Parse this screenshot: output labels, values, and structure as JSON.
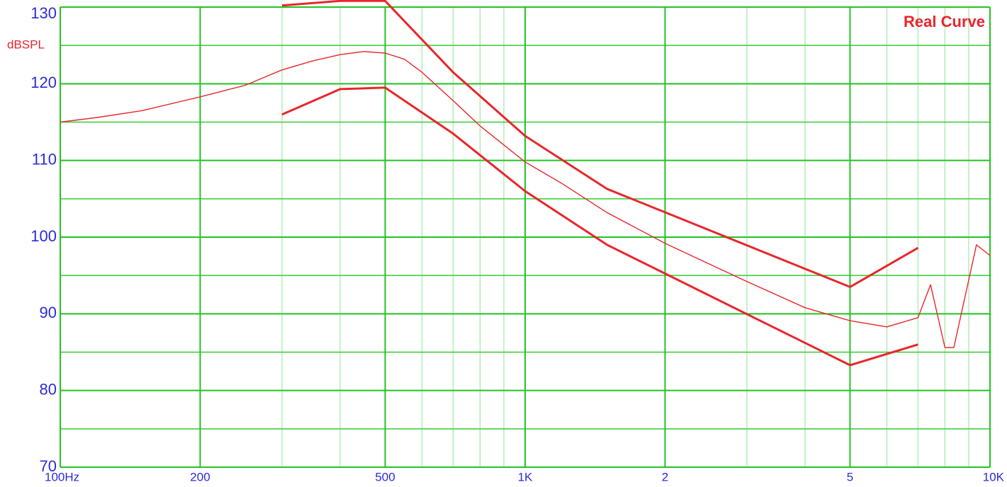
{
  "chart_data": {
    "type": "line",
    "title": "Real Curve",
    "y_label": "dBSPL",
    "xscale": "log",
    "xlim": [
      100,
      10000
    ],
    "ylim": [
      70,
      130
    ],
    "xticks": [
      {
        "value": 100,
        "label": "100Hz"
      },
      200,
      500,
      {
        "value": 1000,
        "label": "1K"
      },
      {
        "value": 2000,
        "label": "2"
      },
      {
        "value": 5000,
        "label": "5"
      },
      {
        "value": 10000,
        "label": "10K"
      }
    ],
    "minor_xticks": [
      300,
      400,
      600,
      700,
      800,
      900,
      3000,
      4000,
      6000,
      7000,
      8000,
      9000
    ],
    "yticks": [
      70,
      80,
      90,
      100,
      110,
      120,
      130
    ],
    "minor_yticks": [
      75,
      85,
      95,
      105,
      115,
      125
    ],
    "grid": true,
    "series": [
      {
        "color": "#e8262b",
        "x": [
          300,
          400,
          500,
          700,
          1000,
          1500,
          5000,
          7000
        ],
        "values": [
          130.2,
          130.8,
          130.8,
          121.5,
          113.2,
          106.3,
          93.5,
          98.6
        ]
      },
      {
        "color": "#e8262b",
        "x": [
          100,
          120,
          150,
          200,
          250,
          300,
          350,
          400,
          450,
          500,
          550,
          600,
          700,
          800,
          1000,
          1200,
          1500,
          2000,
          3000,
          4000,
          5000,
          6000,
          7000,
          7450,
          8000,
          8360,
          9350,
          10000
        ],
        "values": [
          115,
          115.6,
          116.5,
          118.3,
          119.8,
          121.8,
          123,
          123.8,
          124.2,
          124,
          123.2,
          121.5,
          117.8,
          114.5,
          109.8,
          107,
          103.2,
          99.2,
          94.2,
          90.8,
          89.1,
          88.3,
          89.5,
          93.8,
          85.6,
          85.6,
          99,
          97.6
        ]
      },
      {
        "color": "#e8262b",
        "x": [
          300,
          400,
          500,
          700,
          1000,
          1500,
          5000,
          7000
        ],
        "values": [
          116,
          119.3,
          119.5,
          113.5,
          106,
          99,
          83.3,
          86
        ]
      }
    ]
  }
}
